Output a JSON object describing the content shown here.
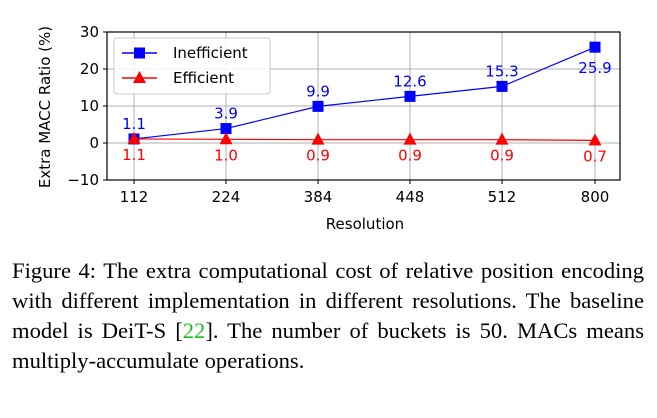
{
  "chart_data": {
    "type": "line",
    "categories": [
      "112",
      "224",
      "384",
      "448",
      "512",
      "800"
    ],
    "series": [
      {
        "name": "Inefficient",
        "values": [
          1.1,
          3.9,
          9.9,
          12.6,
          15.3,
          25.9
        ],
        "labels": [
          "1.1",
          "3.9",
          "9.9",
          "12.6",
          "15.3",
          "25.9"
        ],
        "color": "#0000ff",
        "marker": "square"
      },
      {
        "name": "Efficient",
        "values": [
          1.1,
          1.0,
          0.9,
          0.9,
          0.9,
          0.7
        ],
        "labels": [
          "1.1",
          "1.0",
          "0.9",
          "0.9",
          "0.9",
          "0.7"
        ],
        "color": "#ff0000",
        "marker": "triangle"
      }
    ],
    "xlabel": "Resolution",
    "ylabel": "Extra MACC Ratio (%)",
    "ylim": [
      -10,
      30
    ],
    "yticks": [
      -10,
      0,
      10,
      20,
      30
    ],
    "ytick_labels": [
      "−10",
      "0",
      "10",
      "20",
      "30"
    ],
    "grid": true,
    "legend": "top-left"
  },
  "caption": {
    "label": "Figure 4:",
    "text_before_cite": "The extra computational cost of relative position encoding with different implementation in different resolutions. The baseline model is DeiT-S [",
    "cite": "22",
    "text_after_cite": "]. The number of buckets is 50. MACs means multiply-accumulate operations."
  }
}
